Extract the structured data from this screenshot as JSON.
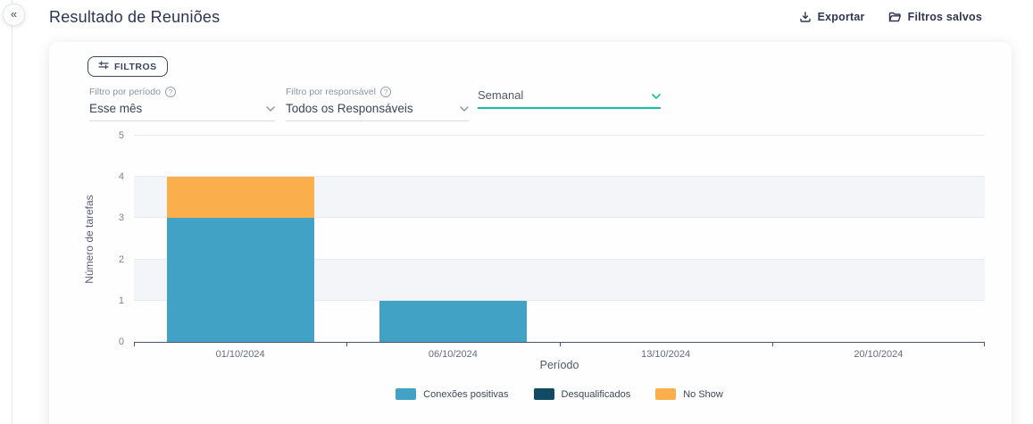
{
  "sidebar": {
    "collapse_glyph": "«"
  },
  "header": {
    "title": "Resultado de Reuniões",
    "export_label": "Exportar",
    "saved_filters_label": "Filtros salvos"
  },
  "filters": {
    "filters_button_label": "FILTROS",
    "period_label": "Filtro por período",
    "period_value": "Esse mês",
    "responsible_label": "Filtro por responsável",
    "responsible_value": "Todos os Responsáveis",
    "granularity_value": "Semanal"
  },
  "chart_data": {
    "type": "bar",
    "stacked": true,
    "title": "",
    "xlabel": "Período",
    "ylabel": "Número de tarefas",
    "categories": [
      "01/10/2024",
      "06/10/2024",
      "13/10/2024",
      "20/10/2024"
    ],
    "series": [
      {
        "name": "Conexões positivas",
        "color": "#42a2c5",
        "values": [
          3,
          1,
          0,
          0
        ]
      },
      {
        "name": "Desqualificados",
        "color": "#114a63",
        "values": [
          0,
          0,
          0,
          0
        ]
      },
      {
        "name": "No Show",
        "color": "#fbae4c",
        "values": [
          1,
          0,
          0,
          0
        ]
      }
    ],
    "ylim": [
      0,
      5
    ],
    "yticks": [
      0,
      1,
      2,
      3,
      4,
      5
    ],
    "grid": true,
    "split_area": "alternating",
    "legend_position": "bottom"
  },
  "colors": {
    "accent_teal": "#12bfa0",
    "navy_text": "#2e3650",
    "bar_blue": "#42a2c5",
    "bar_navy": "#114a63",
    "bar_orange": "#fbae4c"
  }
}
